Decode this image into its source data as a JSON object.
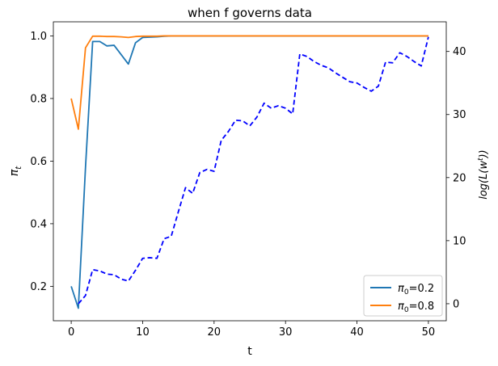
{
  "chart_data": {
    "type": "line",
    "title": "when f governs data",
    "xlabel": "t",
    "ylabel_left": "π_t",
    "ylabel_right": "log(L(w^t))",
    "xlim": [
      -2.5,
      52.5
    ],
    "ylim_left": [
      0.09,
      1.045
    ],
    "ylim_right": [
      -2.7,
      44.7
    ],
    "x_ticks": [
      0,
      10,
      20,
      30,
      40,
      50
    ],
    "y_left_ticks": [
      0.2,
      0.4,
      0.6,
      0.8,
      1.0
    ],
    "y_right_ticks": [
      0,
      10,
      20,
      30,
      40
    ],
    "grid": false,
    "legend_position": "lower right",
    "series": [
      {
        "name": "π0=0.2",
        "axis": "left",
        "color": "#1f77b4",
        "style": "solid",
        "x": [
          0,
          1,
          2,
          3,
          4,
          5,
          6,
          7,
          8,
          9,
          10,
          11,
          12,
          13,
          14,
          15,
          16,
          17,
          18,
          19,
          20,
          21,
          22,
          23,
          24,
          25,
          26,
          27,
          28,
          29,
          30,
          31,
          32,
          33,
          34,
          35,
          36,
          37,
          38,
          39,
          40,
          41,
          42,
          43,
          44,
          45,
          46,
          47,
          48,
          49,
          50
        ],
        "values": [
          0.2,
          0.13,
          0.58,
          0.982,
          0.982,
          0.968,
          0.97,
          0.94,
          0.91,
          0.978,
          0.995,
          0.996,
          0.997,
          0.999,
          1.0,
          1.0,
          1.0,
          1.0,
          1.0,
          1.0,
          1.0,
          1.0,
          1.0,
          1.0,
          1.0,
          1.0,
          1.0,
          1.0,
          1.0,
          1.0,
          1.0,
          1.0,
          1.0,
          1.0,
          1.0,
          1.0,
          1.0,
          1.0,
          1.0,
          1.0,
          1.0,
          1.0,
          1.0,
          1.0,
          1.0,
          1.0,
          1.0,
          1.0,
          1.0,
          1.0,
          1.0
        ]
      },
      {
        "name": "π0=0.8",
        "axis": "left",
        "color": "#ff7f0e",
        "style": "solid",
        "x": [
          0,
          1,
          2,
          3,
          4,
          5,
          6,
          7,
          8,
          9,
          10,
          11,
          12,
          13,
          14,
          15,
          16,
          17,
          18,
          19,
          20,
          21,
          22,
          23,
          24,
          25,
          26,
          27,
          28,
          29,
          30,
          31,
          32,
          33,
          34,
          35,
          36,
          37,
          38,
          39,
          40,
          41,
          42,
          43,
          44,
          45,
          46,
          47,
          48,
          49,
          50
        ],
        "values": [
          0.8,
          0.702,
          0.962,
          0.999,
          0.999,
          0.998,
          0.998,
          0.997,
          0.995,
          0.998,
          0.999,
          0.999,
          0.999,
          1.0,
          1.0,
          1.0,
          1.0,
          1.0,
          1.0,
          1.0,
          1.0,
          1.0,
          1.0,
          1.0,
          1.0,
          1.0,
          1.0,
          1.0,
          1.0,
          1.0,
          1.0,
          1.0,
          1.0,
          1.0,
          1.0,
          1.0,
          1.0,
          1.0,
          1.0,
          1.0,
          1.0,
          1.0,
          1.0,
          1.0,
          1.0,
          1.0,
          1.0,
          1.0,
          1.0,
          1.0,
          1.0
        ]
      },
      {
        "axis": "right",
        "color": "#0000ff",
        "style": "dashed",
        "x": [
          1,
          2,
          3,
          4,
          5,
          6,
          7,
          8,
          9,
          10,
          11,
          12,
          13,
          14,
          15,
          16,
          17,
          18,
          19,
          20,
          21,
          22,
          23,
          24,
          25,
          26,
          27,
          28,
          29,
          30,
          31,
          32,
          33,
          34,
          35,
          36,
          37,
          38,
          39,
          40,
          41,
          42,
          43,
          44,
          45,
          46,
          47,
          48,
          49,
          50
        ],
        "values": [
          0,
          1.3,
          5.4,
          5.2,
          4.7,
          4.6,
          3.9,
          3.6,
          5.3,
          7.2,
          7.3,
          7.2,
          10.3,
          10.7,
          14.6,
          18.4,
          17.5,
          20.8,
          21.3,
          21.0,
          25.9,
          27.3,
          29.1,
          29.0,
          28.2,
          29.6,
          31.8,
          31.0,
          31.4,
          31.0,
          30.1,
          39.6,
          39.2,
          38.4,
          37.8,
          37.4,
          36.6,
          35.9,
          35.2,
          35.0,
          34.3,
          33.7,
          34.5,
          38.3,
          38.2,
          39.8,
          39.2,
          38.4,
          37.7,
          42.3
        ]
      }
    ]
  }
}
